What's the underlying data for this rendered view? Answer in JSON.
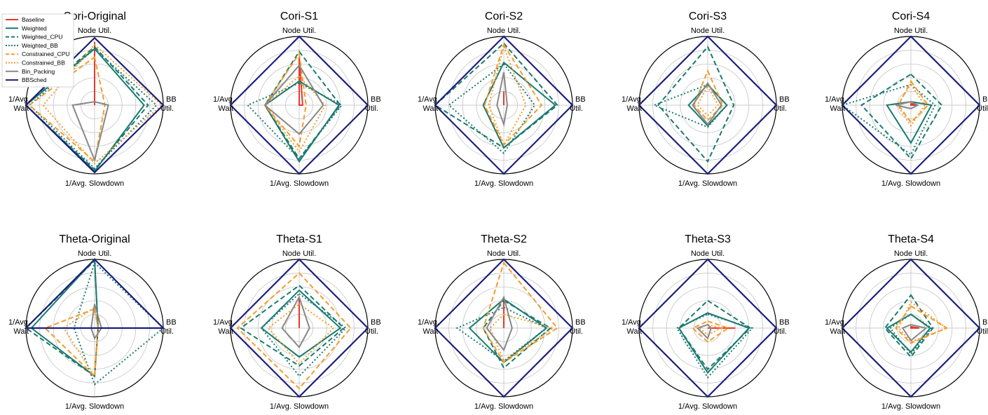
{
  "axis_labels": {
    "top": "Node Util.",
    "right": [
      "BB",
      "Util."
    ],
    "bottom": "1/Avg. Slowdown",
    "left": [
      "1/Avg.",
      "Wait"
    ]
  },
  "series_styles": [
    {
      "name": "Baseline",
      "color": "#e8392b",
      "dash": "solid"
    },
    {
      "name": "Weighted",
      "color": "#1a7a70",
      "dash": "solid"
    },
    {
      "name": "Weighted_CPU",
      "color": "#1a7a70",
      "dash": "dashed"
    },
    {
      "name": "Weighted_BB",
      "color": "#1a7a70",
      "dash": "dotted"
    },
    {
      "name": "Constrained_CPU",
      "color": "#f39c2c",
      "dash": "dashed"
    },
    {
      "name": "Constrained_BB",
      "color": "#f39c2c",
      "dash": "dotted"
    },
    {
      "name": "Bin_Packing",
      "color": "#888888",
      "dash": "solid"
    },
    {
      "name": "BBSched",
      "color": "#1b1f7a",
      "dash": "solid"
    }
  ],
  "chart_data": [
    {
      "type": "radar",
      "title": "Cori-Original",
      "axes": [
        "Node Util.",
        "BB Util.",
        "1/Avg. Slowdown",
        "1/Avg. Wait"
      ],
      "rmax": 1.0,
      "grid_rings": [
        0.2,
        0.4,
        0.6,
        0.8,
        1.0
      ],
      "series": [
        {
          "name": "Baseline",
          "values": [
            0.92,
            0.0,
            0.0,
            0.0
          ]
        },
        {
          "name": "Weighted",
          "values": [
            0.82,
            0.72,
            0.96,
            1.0
          ]
        },
        {
          "name": "Weighted_CPU",
          "values": [
            0.85,
            0.78,
            0.94,
            1.0
          ]
        },
        {
          "name": "Weighted_BB",
          "values": [
            0.82,
            0.9,
            0.92,
            0.95
          ]
        },
        {
          "name": "Constrained_CPU",
          "values": [
            0.7,
            0.15,
            0.82,
            0.95
          ]
        },
        {
          "name": "Constrained_BB",
          "values": [
            0.88,
            0.98,
            0.85,
            0.75
          ]
        },
        {
          "name": "Bin_Packing",
          "values": [
            0.05,
            0.2,
            0.8,
            0.32
          ]
        },
        {
          "name": "BBSched",
          "values": [
            0.98,
            1.0,
            0.98,
            1.0
          ]
        }
      ]
    },
    {
      "type": "radar",
      "title": "Cori-S1",
      "axes": [
        "Node Util.",
        "BB Util.",
        "1/Avg. Slowdown",
        "1/Avg. Wait"
      ],
      "rmax": 1.0,
      "grid_rings": [
        0.2,
        0.4,
        0.6,
        0.8,
        1.0
      ],
      "series": [
        {
          "name": "Baseline",
          "values": [
            0.7,
            0.05,
            0.0,
            0.0
          ]
        },
        {
          "name": "Weighted",
          "values": [
            0.35,
            0.58,
            0.82,
            0.5
          ]
        },
        {
          "name": "Weighted_CPU",
          "values": [
            0.78,
            0.6,
            0.78,
            0.5
          ]
        },
        {
          "name": "Weighted_BB",
          "values": [
            0.32,
            0.62,
            0.78,
            0.75
          ]
        },
        {
          "name": "Constrained_CPU",
          "values": [
            0.75,
            0.1,
            0.6,
            0.5
          ]
        },
        {
          "name": "Constrained_BB",
          "values": [
            0.42,
            0.38,
            0.68,
            0.5
          ]
        },
        {
          "name": "Bin_Packing",
          "values": [
            0.58,
            0.35,
            0.42,
            0.5
          ]
        },
        {
          "name": "BBSched",
          "values": [
            1.0,
            1.0,
            1.0,
            1.0
          ]
        }
      ]
    },
    {
      "type": "radar",
      "title": "Cori-S2",
      "axes": [
        "Node Util.",
        "BB Util.",
        "1/Avg. Slowdown",
        "1/Avg. Wait"
      ],
      "rmax": 1.0,
      "grid_rings": [
        0.2,
        0.4,
        0.6,
        0.8,
        1.0
      ],
      "series": [
        {
          "name": "Baseline",
          "values": [
            0.2,
            0.0,
            0.0,
            0.0
          ]
        },
        {
          "name": "Weighted",
          "values": [
            0.62,
            0.75,
            0.62,
            0.3
          ]
        },
        {
          "name": "Weighted_CPU",
          "values": [
            0.9,
            0.78,
            0.62,
            1.0
          ]
        },
        {
          "name": "Weighted_BB",
          "values": [
            0.6,
            0.45,
            0.7,
            0.8
          ]
        },
        {
          "name": "Constrained_CPU",
          "values": [
            0.88,
            0.55,
            0.58,
            0.28
          ]
        },
        {
          "name": "Constrained_BB",
          "values": [
            0.85,
            0.32,
            0.58,
            0.22
          ]
        },
        {
          "name": "Bin_Packing",
          "values": [
            0.48,
            0.05,
            0.28,
            0.1
          ]
        },
        {
          "name": "BBSched",
          "values": [
            1.0,
            1.0,
            1.0,
            1.0
          ]
        }
      ]
    },
    {
      "type": "radar",
      "title": "Cori-S3",
      "axes": [
        "Node Util.",
        "BB Util.",
        "1/Avg. Slowdown",
        "1/Avg. Wait"
      ],
      "rmax": 1.0,
      "grid_rings": [
        0.2,
        0.4,
        0.6,
        0.8,
        1.0
      ],
      "series": [
        {
          "name": "Baseline",
          "values": [
            0.0,
            0.0,
            0.0,
            0.0
          ]
        },
        {
          "name": "Weighted",
          "values": [
            0.3,
            0.28,
            0.3,
            0.28
          ]
        },
        {
          "name": "Weighted_CPU",
          "values": [
            0.85,
            0.38,
            0.82,
            0.72
          ]
        },
        {
          "name": "Weighted_BB",
          "values": [
            0.3,
            0.28,
            0.32,
            0.78
          ]
        },
        {
          "name": "Constrained_CPU",
          "values": [
            0.5,
            0.22,
            0.22,
            0.2
          ]
        },
        {
          "name": "Constrained_BB",
          "values": [
            0.28,
            0.15,
            0.15,
            0.15
          ]
        },
        {
          "name": "Bin_Packing",
          "values": [
            0.32,
            0.2,
            0.28,
            0.22
          ]
        },
        {
          "name": "BBSched",
          "values": [
            1.0,
            1.0,
            1.0,
            1.0
          ]
        }
      ]
    },
    {
      "type": "radar",
      "title": "Cori-S4",
      "axes": [
        "Node Util.",
        "BB Util.",
        "1/Avg. Slowdown",
        "1/Avg. Wait"
      ],
      "rmax": 1.0,
      "grid_rings": [
        0.2,
        0.4,
        0.6,
        0.8,
        1.0
      ],
      "series": [
        {
          "name": "Baseline",
          "values": [
            0.02,
            0.1,
            0.0,
            0.0
          ]
        },
        {
          "name": "Weighted",
          "values": [
            0.05,
            0.3,
            0.55,
            0.35
          ]
        },
        {
          "name": "Weighted_CPU",
          "values": [
            0.45,
            0.45,
            0.78,
            0.72
          ]
        },
        {
          "name": "Weighted_BB",
          "values": [
            0.3,
            0.35,
            0.72,
            1.0
          ]
        },
        {
          "name": "Constrained_CPU",
          "values": [
            0.35,
            0.25,
            0.25,
            0.18
          ]
        },
        {
          "name": "Constrained_BB",
          "values": [
            0.3,
            0.2,
            0.3,
            0.2
          ]
        },
        {
          "name": "Bin_Packing",
          "values": [
            0.05,
            0.1,
            0.05,
            0.22
          ]
        },
        {
          "name": "BBSched",
          "values": [
            1.0,
            1.0,
            1.0,
            1.0
          ]
        }
      ]
    },
    {
      "type": "radar",
      "title": "Theta-Original",
      "axes": [
        "Node Util.",
        "BB Util.",
        "1/Avg. Slowdown",
        "1/Avg. Wait"
      ],
      "rmax": 1.0,
      "grid_rings": [
        0.2,
        0.4,
        0.6,
        0.8,
        1.0
      ],
      "series": [
        {
          "name": "Baseline",
          "values": [
            0.0,
            0.0,
            0.0,
            0.0
          ]
        },
        {
          "name": "Weighted",
          "values": [
            1.0,
            0.05,
            0.7,
            0.92
          ]
        },
        {
          "name": "Weighted_CPU",
          "values": [
            0.98,
            0.05,
            0.7,
            1.0
          ]
        },
        {
          "name": "Weighted_BB",
          "values": [
            0.95,
            1.0,
            0.82,
            0.3
          ]
        },
        {
          "name": "Constrained_CPU",
          "values": [
            0.28,
            0.05,
            0.7,
            0.72
          ]
        },
        {
          "name": "Constrained_BB",
          "values": [
            0.3,
            0.05,
            0.7,
            0.45
          ]
        },
        {
          "name": "Bin_Packing",
          "values": [
            0.35,
            0.1,
            0.15,
            0.05
          ]
        },
        {
          "name": "BBSched",
          "values": [
            1.0,
            1.0,
            0.0,
            1.0
          ]
        }
      ]
    },
    {
      "type": "radar",
      "title": "Theta-S1",
      "axes": [
        "Node Util.",
        "BB Util.",
        "1/Avg. Slowdown",
        "1/Avg. Wait"
      ],
      "rmax": 1.0,
      "grid_rings": [
        0.2,
        0.4,
        0.6,
        0.8,
        1.0
      ],
      "series": [
        {
          "name": "Baseline",
          "values": [
            0.45,
            0.0,
            0.0,
            0.0
          ]
        },
        {
          "name": "Weighted",
          "values": [
            0.55,
            0.6,
            0.42,
            0.55
          ]
        },
        {
          "name": "Weighted_CPU",
          "values": [
            0.62,
            0.65,
            0.55,
            0.85
          ]
        },
        {
          "name": "Weighted_BB",
          "values": [
            0.5,
            0.68,
            0.7,
            0.55
          ]
        },
        {
          "name": "Constrained_CPU",
          "values": [
            0.8,
            0.75,
            0.88,
            0.9
          ]
        },
        {
          "name": "Constrained_BB",
          "values": [
            0.35,
            0.5,
            0.52,
            0.45
          ]
        },
        {
          "name": "Bin_Packing",
          "values": [
            0.45,
            0.15,
            0.28,
            0.25
          ]
        },
        {
          "name": "BBSched",
          "values": [
            1.0,
            1.0,
            1.0,
            1.0
          ]
        }
      ]
    },
    {
      "type": "radar",
      "title": "Theta-S2",
      "axes": [
        "Node Util.",
        "BB Util.",
        "1/Avg. Slowdown",
        "1/Avg. Wait"
      ],
      "rmax": 1.0,
      "grid_rings": [
        0.2,
        0.4,
        0.6,
        0.8,
        1.0
      ],
      "series": [
        {
          "name": "Baseline",
          "values": [
            0.45,
            0.0,
            0.0,
            0.0
          ]
        },
        {
          "name": "Weighted",
          "values": [
            0.42,
            0.62,
            0.5,
            0.5
          ]
        },
        {
          "name": "Weighted_CPU",
          "values": [
            0.4,
            0.68,
            0.58,
            0.3
          ]
        },
        {
          "name": "Weighted_BB",
          "values": [
            0.3,
            0.62,
            0.48,
            0.68
          ]
        },
        {
          "name": "Constrained_CPU",
          "values": [
            0.95,
            0.78,
            0.5,
            0.3
          ]
        },
        {
          "name": "Constrained_BB",
          "values": [
            0.2,
            0.72,
            0.48,
            0.2
          ]
        },
        {
          "name": "Bin_Packing",
          "values": [
            0.45,
            0.12,
            0.32,
            0.25
          ]
        },
        {
          "name": "BBSched",
          "values": [
            1.0,
            1.0,
            1.0,
            1.0
          ]
        }
      ]
    },
    {
      "type": "radar",
      "title": "Theta-S3",
      "axes": [
        "Node Util.",
        "BB Util.",
        "1/Avg. Slowdown",
        "1/Avg. Wait"
      ],
      "rmax": 1.0,
      "grid_rings": [
        0.2,
        0.4,
        0.6,
        0.8,
        1.0
      ],
      "series": [
        {
          "name": "Baseline",
          "values": [
            0.0,
            0.4,
            0.0,
            0.0
          ]
        },
        {
          "name": "Weighted",
          "values": [
            0.22,
            0.6,
            0.65,
            0.42
          ]
        },
        {
          "name": "Weighted_CPU",
          "values": [
            0.4,
            0.62,
            0.6,
            0.42
          ]
        },
        {
          "name": "Weighted_BB",
          "values": [
            0.2,
            0.65,
            0.72,
            0.45
          ]
        },
        {
          "name": "Constrained_CPU",
          "values": [
            0.1,
            0.3,
            0.2,
            0.22
          ]
        },
        {
          "name": "Constrained_BB",
          "values": [
            0.05,
            0.2,
            0.1,
            0.12
          ]
        },
        {
          "name": "Bin_Packing",
          "values": [
            0.05,
            0.05,
            0.15,
            0.15
          ]
        },
        {
          "name": "BBSched",
          "values": [
            1.0,
            1.0,
            1.0,
            1.0
          ]
        }
      ]
    },
    {
      "type": "radar",
      "title": "Theta-S4",
      "axes": [
        "Node Util.",
        "BB Util.",
        "1/Avg. Slowdown",
        "1/Avg. Wait"
      ],
      "rmax": 1.0,
      "grid_rings": [
        0.2,
        0.4,
        0.6,
        0.8,
        1.0
      ],
      "series": [
        {
          "name": "Baseline",
          "values": [
            0.02,
            0.12,
            0.0,
            0.0
          ]
        },
        {
          "name": "Weighted",
          "values": [
            0.2,
            0.28,
            0.35,
            0.35
          ]
        },
        {
          "name": "Weighted_CPU",
          "values": [
            0.48,
            0.32,
            0.42,
            0.38
          ]
        },
        {
          "name": "Weighted_BB",
          "values": [
            0.2,
            0.3,
            0.38,
            0.3
          ]
        },
        {
          "name": "Constrained_CPU",
          "values": [
            0.32,
            0.52,
            0.22,
            0.22
          ]
        },
        {
          "name": "Constrained_BB",
          "values": [
            0.38,
            0.52,
            0.2,
            0.18
          ]
        },
        {
          "name": "Bin_Packing",
          "values": [
            0.05,
            0.22,
            0.18,
            0.12
          ]
        },
        {
          "name": "BBSched",
          "values": [
            1.0,
            1.0,
            1.0,
            1.0
          ]
        }
      ]
    }
  ]
}
